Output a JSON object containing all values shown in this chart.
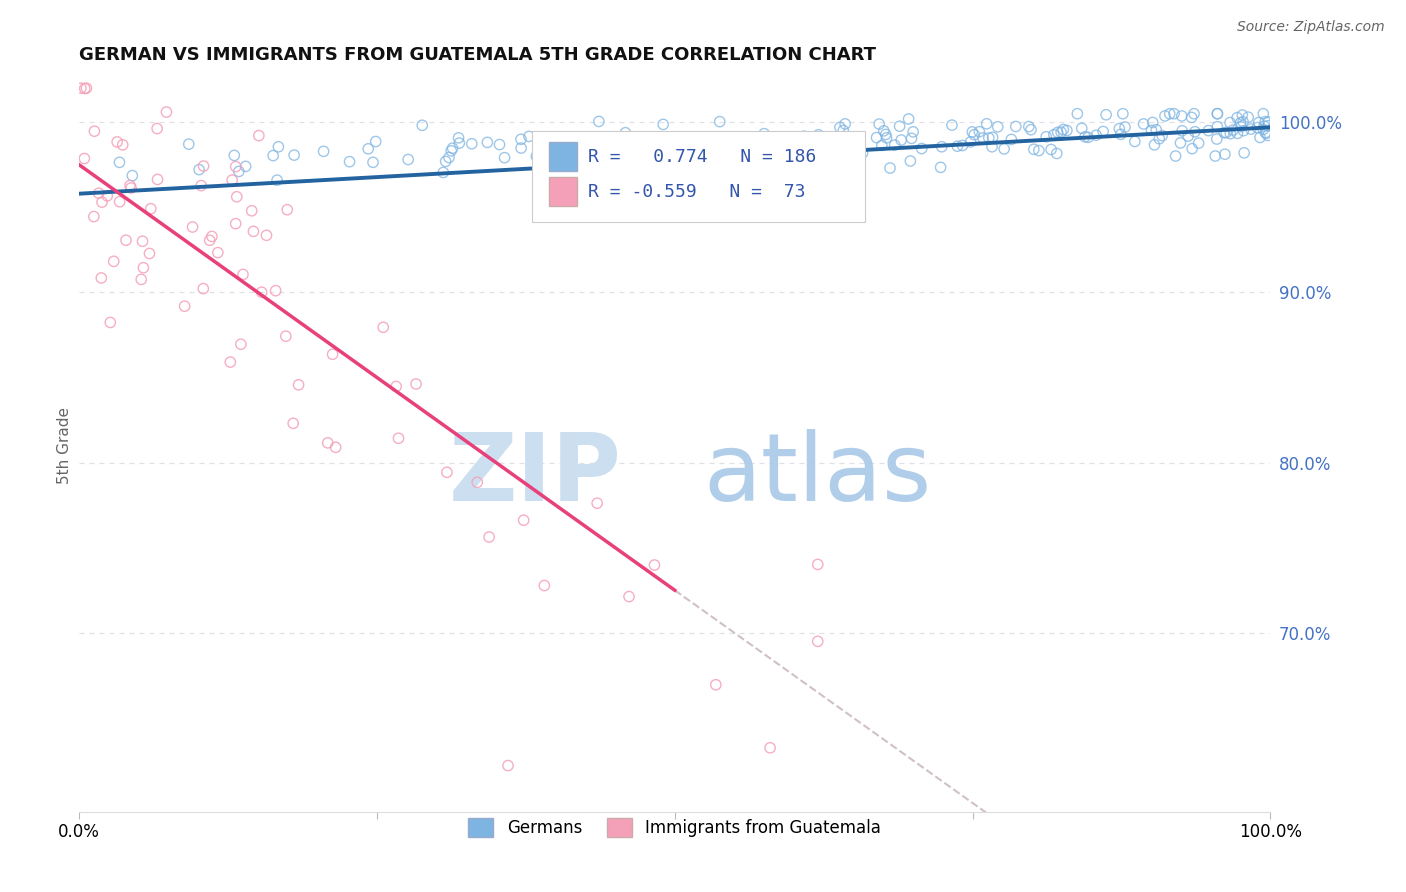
{
  "title": "GERMAN VS IMMIGRANTS FROM GUATEMALA 5TH GRADE CORRELATION CHART",
  "source": "Source: ZipAtlas.com",
  "ylabel": "5th Grade",
  "xmin": 0.0,
  "xmax": 1.0,
  "ymin": 0.595,
  "ymax": 1.025,
  "yticks": [
    0.7,
    0.8,
    0.9,
    1.0
  ],
  "ytick_labels": [
    "70.0%",
    "80.0%",
    "90.0%",
    "100.0%"
  ],
  "blue_R": 0.774,
  "blue_N": 186,
  "pink_R": -0.559,
  "pink_N": 73,
  "blue_color": "#7eb4e2",
  "blue_line_color": "#2263a0",
  "pink_color": "#f4a0b8",
  "pink_line_color": "#e8407a",
  "dashed_line_color": "#d0c0c8",
  "legend_label_blue": "Germans",
  "legend_label_pink": "Immigrants from Guatemala",
  "background_color": "#ffffff",
  "grid_color": "#e0e0e8"
}
